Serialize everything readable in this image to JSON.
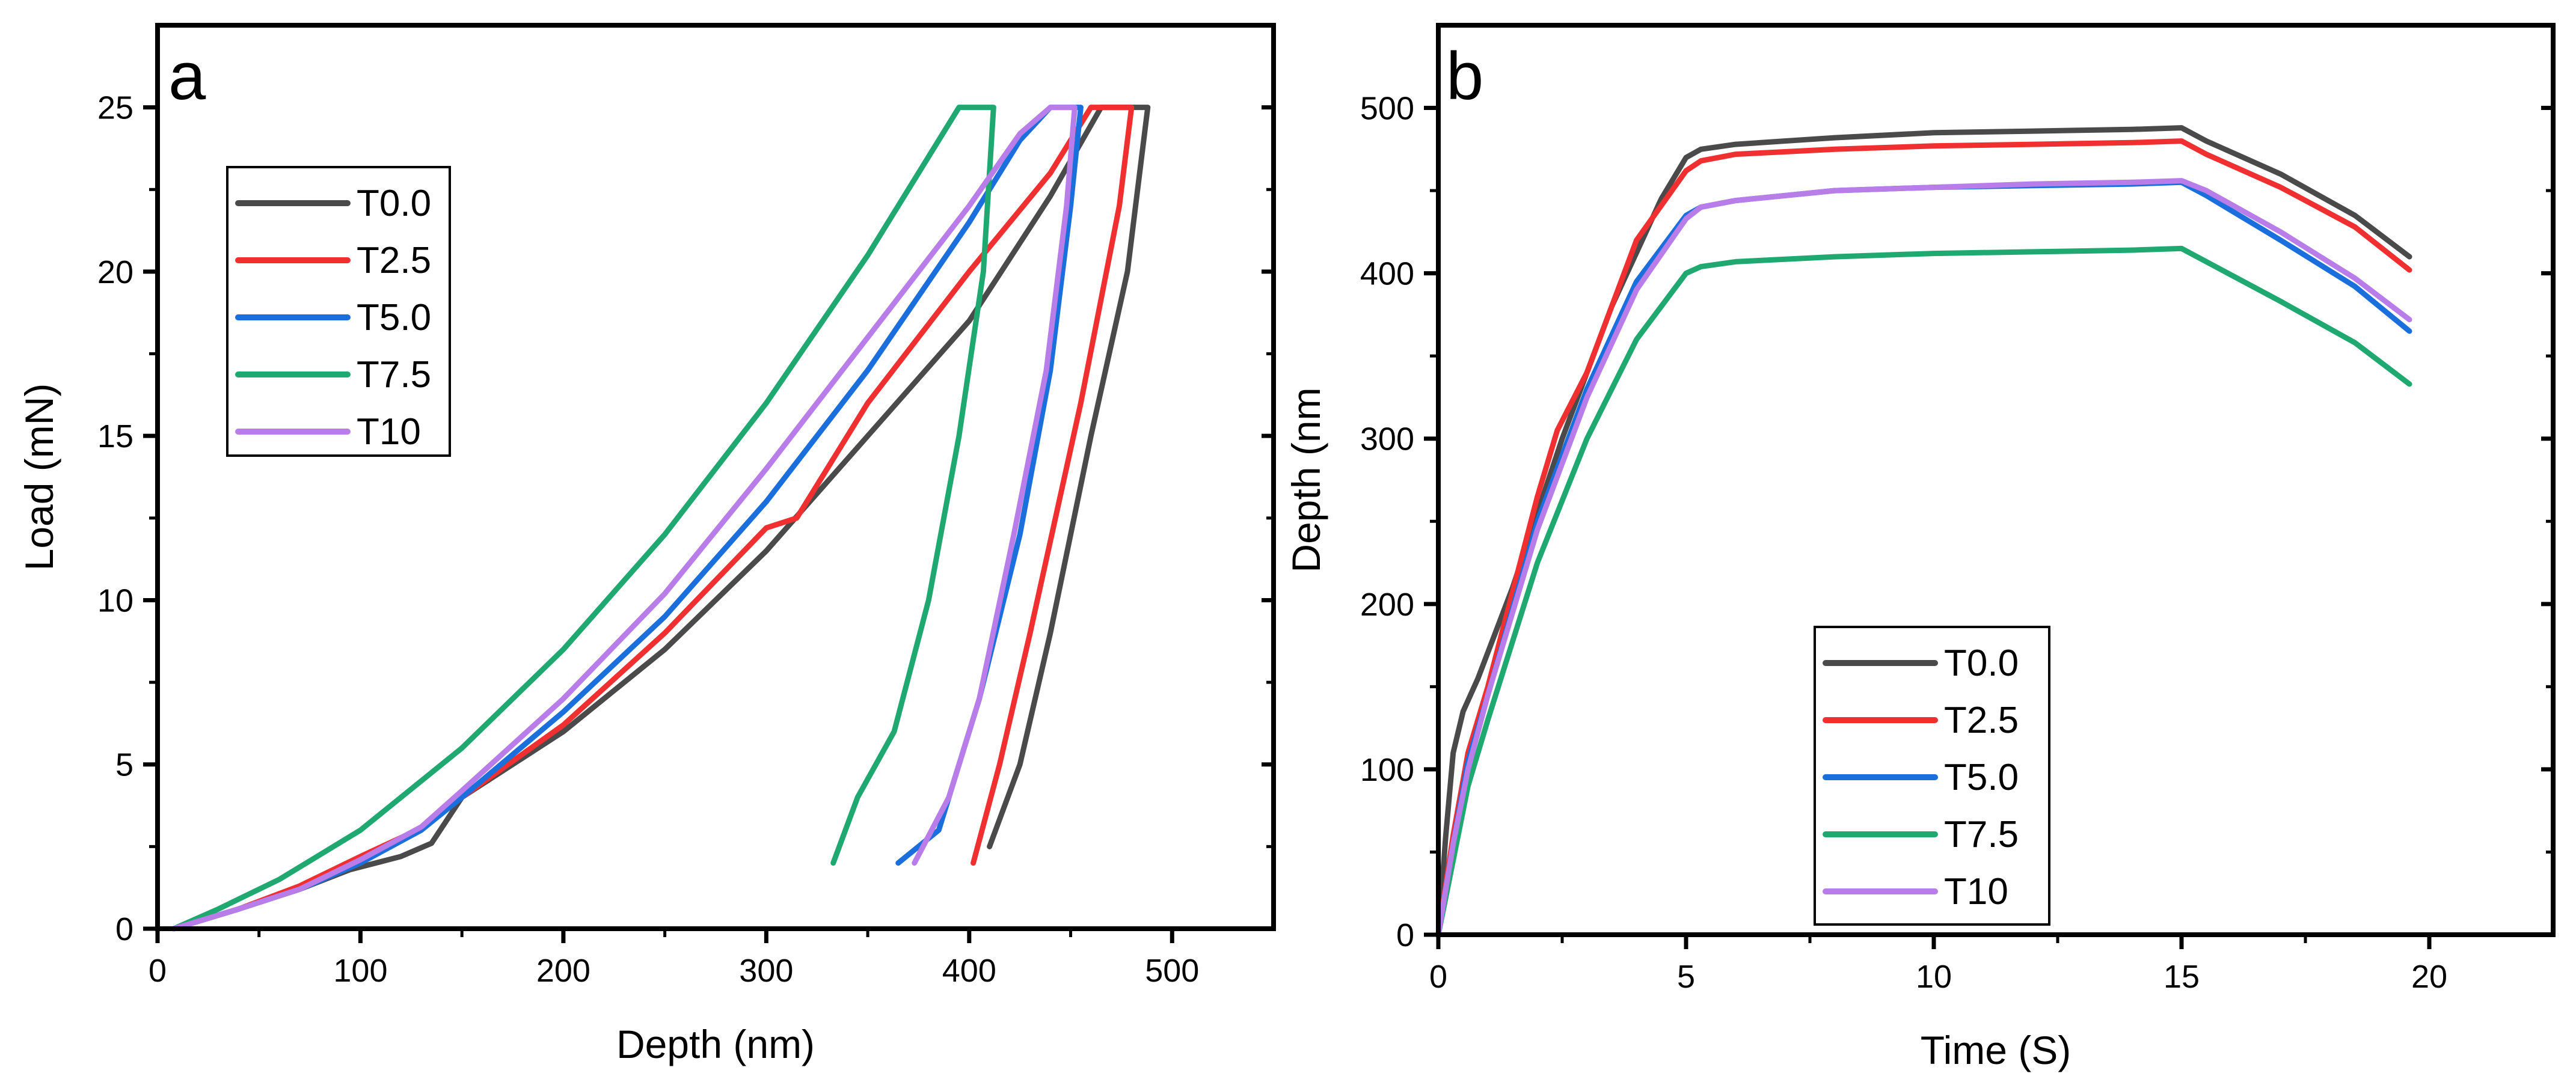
{
  "chart_data": [
    {
      "type": "line",
      "panel_label": "a",
      "xlabel": "Depth (nm)",
      "ylabel": "Load (mN)",
      "xlim": [
        0,
        550
      ],
      "ylim": [
        0,
        27.5
      ],
      "xticks": [
        0,
        100,
        200,
        300,
        400,
        500
      ],
      "yticks": [
        0,
        5,
        10,
        15,
        20,
        25
      ],
      "xtick_labels": [
        "0",
        "100",
        "200",
        "300",
        "400",
        "500"
      ],
      "ytick_labels": [
        "0",
        "5",
        "10",
        "15",
        "20",
        "25"
      ],
      "legend_position": "upper-left",
      "series": [
        {
          "name": "T0.0",
          "color": "#4a4a4a",
          "x": [
            8,
            40,
            70,
            95,
            120,
            135,
            150,
            200,
            250,
            300,
            350,
            400,
            440,
            465,
            478,
            488,
            478,
            460,
            440,
            425,
            410
          ],
          "y": [
            0,
            0.6,
            1.2,
            1.8,
            2.2,
            2.6,
            4.0,
            6.0,
            8.5,
            11.5,
            15.0,
            18.5,
            22.3,
            25.0,
            25.0,
            25.0,
            20.0,
            15.0,
            9.0,
            5.0,
            2.5
          ]
        },
        {
          "name": "T2.5",
          "color": "#f03030",
          "x": [
            8,
            40,
            70,
            100,
            128,
            150,
            200,
            250,
            300,
            315,
            350,
            400,
            440,
            460,
            472,
            480,
            474,
            455,
            430,
            415,
            402
          ],
          "y": [
            0,
            0.6,
            1.3,
            2.2,
            3.0,
            4.0,
            6.2,
            9.0,
            12.2,
            12.5,
            16.0,
            20.0,
            23.0,
            25.0,
            25.0,
            25.0,
            22.0,
            16.0,
            9.0,
            5.0,
            2.0
          ]
        },
        {
          "name": "T5.0",
          "color": "#1a6fdc",
          "x": [
            8,
            40,
            70,
            100,
            130,
            150,
            200,
            250,
            300,
            350,
            400,
            425,
            440,
            450,
            455,
            450,
            440,
            425,
            405,
            385,
            365
          ],
          "y": [
            0,
            0.6,
            1.2,
            2.0,
            3.0,
            4.0,
            6.6,
            9.5,
            13.0,
            17.0,
            21.5,
            24.0,
            25.0,
            25.0,
            25.0,
            22.0,
            17.0,
            12.0,
            7.0,
            3.0,
            2.0
          ]
        },
        {
          "name": "T7.5",
          "color": "#1fa870",
          "x": [
            8,
            30,
            60,
            100,
            150,
            200,
            250,
            300,
            350,
            380,
            395,
            405,
            412,
            407,
            395,
            380,
            363,
            345,
            333
          ],
          "y": [
            0,
            0.6,
            1.5,
            3.0,
            5.5,
            8.5,
            12.0,
            16.0,
            20.5,
            23.5,
            25.0,
            25.0,
            25.0,
            20.0,
            15.0,
            10.0,
            6.0,
            4.0,
            2.0
          ]
        },
        {
          "name": "T10",
          "color": "#b87de8",
          "x": [
            8,
            40,
            70,
            100,
            130,
            150,
            200,
            250,
            300,
            350,
            400,
            425,
            440,
            448,
            452,
            448,
            438,
            422,
            405,
            390,
            373
          ],
          "y": [
            0,
            0.6,
            1.2,
            2.1,
            3.1,
            4.2,
            7.0,
            10.2,
            14.0,
            18.0,
            22.0,
            24.2,
            25.0,
            25.0,
            25.0,
            22.0,
            17.0,
            12.0,
            7.0,
            4.0,
            2.0
          ]
        }
      ]
    },
    {
      "type": "line",
      "panel_label": "b",
      "xlabel": "Time (S)",
      "ylabel": "Depth (nm",
      "xlim": [
        0,
        22.5
      ],
      "ylim": [
        0,
        550
      ],
      "xticks": [
        0,
        5,
        10,
        15,
        20
      ],
      "yticks": [
        0,
        100,
        200,
        300,
        400,
        500
      ],
      "xtick_labels": [
        "0",
        "5",
        "10",
        "15",
        "20"
      ],
      "ytick_labels": [
        "0",
        "100",
        "200",
        "300",
        "400",
        "500"
      ],
      "legend_position": "bottom-center",
      "series": [
        {
          "name": "T0.0",
          "color": "#4a4a4a",
          "t": [
            0,
            0.15,
            0.3,
            0.5,
            0.8,
            1.5,
            2.5,
            3.5,
            4.5,
            5.0,
            5.3,
            6,
            8,
            10,
            12,
            14,
            15,
            15.5,
            17,
            18.5,
            19.6
          ],
          "y": [
            0,
            60,
            110,
            135,
            155,
            210,
            300,
            380,
            445,
            470,
            475,
            478,
            482,
            485,
            486,
            487,
            488,
            480,
            460,
            435,
            410
          ]
        },
        {
          "name": "T2.5",
          "color": "#f03030",
          "t": [
            0,
            0.3,
            0.6,
            1,
            2,
            2.4,
            3,
            4,
            5.0,
            5.3,
            6,
            8,
            10,
            12,
            14,
            15,
            15.5,
            17,
            18.5,
            19.6
          ],
          "y": [
            0,
            60,
            110,
            150,
            265,
            305,
            340,
            420,
            462,
            468,
            472,
            475,
            477,
            478,
            479,
            480,
            472,
            452,
            428,
            402
          ]
        },
        {
          "name": "T5.0",
          "color": "#1a6fdc",
          "t": [
            0,
            0.3,
            0.6,
            1,
            2,
            3,
            4,
            5.0,
            5.3,
            6,
            8,
            10,
            12,
            14,
            15,
            15.5,
            17,
            18.5,
            19.6
          ],
          "y": [
            0,
            55,
            105,
            145,
            250,
            330,
            395,
            435,
            440,
            444,
            450,
            452,
            453,
            454,
            455,
            447,
            420,
            392,
            365
          ]
        },
        {
          "name": "T7.5",
          "color": "#1fa870",
          "t": [
            0,
            0.3,
            0.6,
            1,
            2,
            3,
            4,
            5.0,
            5.3,
            6,
            8,
            10,
            12,
            14,
            15,
            15.5,
            17,
            18.5,
            19.6
          ],
          "y": [
            0,
            45,
            90,
            130,
            225,
            300,
            360,
            400,
            404,
            407,
            410,
            412,
            413,
            414,
            415,
            407,
            383,
            358,
            333
          ]
        },
        {
          "name": "T10",
          "color": "#b87de8",
          "t": [
            0,
            0.3,
            0.6,
            1,
            2,
            3,
            4,
            5.0,
            5.3,
            6,
            8,
            10,
            12,
            14,
            15,
            15.5,
            17,
            18.5,
            19.6
          ],
          "y": [
            0,
            55,
            100,
            145,
            245,
            325,
            390,
            433,
            440,
            444,
            450,
            452,
            454,
            455,
            456,
            450,
            425,
            397,
            372
          ]
        }
      ]
    }
  ]
}
